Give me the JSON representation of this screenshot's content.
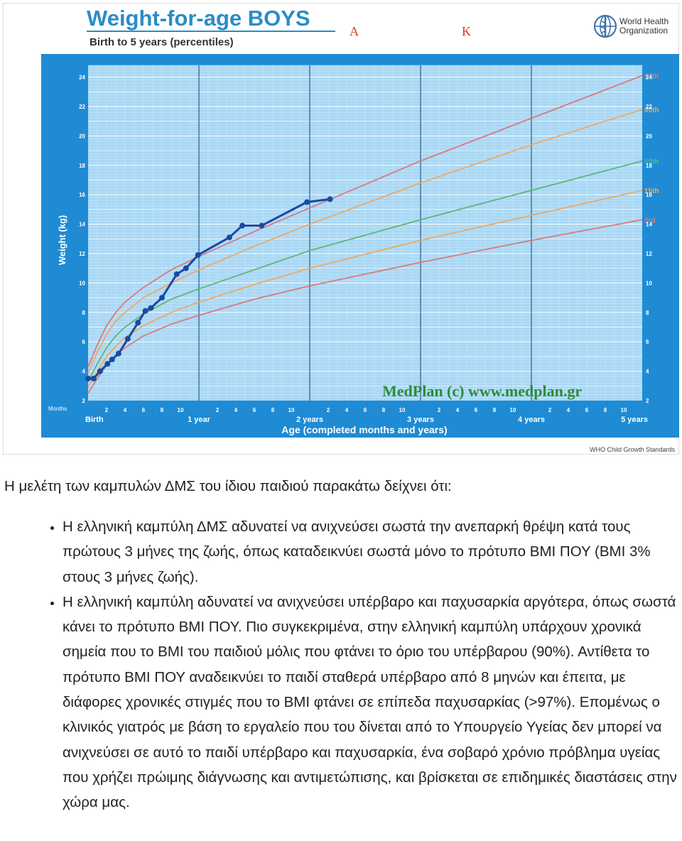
{
  "chart_data": {
    "type": "line",
    "title": "Weight-for-age BOYS",
    "subtitle": "Birth to 5 years (percentiles)",
    "header_marks": [
      "A",
      "K"
    ],
    "organization": "World Health Organization",
    "ylabel": "Weight (kg)",
    "xlabel": "Age (completed months and years)",
    "watermark": "MedPlan (c) www.medplan.gr",
    "footer": "WHO Child Growth Standards",
    "months_label": "Months",
    "ylim": [
      2,
      24.8
    ],
    "xlim": [
      0,
      60
    ],
    "y_ticks": [
      2,
      4,
      6,
      8,
      10,
      12,
      14,
      16,
      18,
      20,
      22,
      24
    ],
    "x_major_labels": [
      {
        "x": 0,
        "label": "Birth"
      },
      {
        "x": 12,
        "label": "1 year"
      },
      {
        "x": 24,
        "label": "2 years"
      },
      {
        "x": 36,
        "label": "3 years"
      },
      {
        "x": 48,
        "label": "4 years"
      },
      {
        "x": 60,
        "label": "5 years"
      }
    ],
    "x_minor_ticks": [
      {
        "x": 2,
        "label": "2"
      },
      {
        "x": 4,
        "label": "4"
      },
      {
        "x": 6,
        "label": "6"
      },
      {
        "x": 8,
        "label": "8"
      },
      {
        "x": 10,
        "label": "10"
      },
      {
        "x": 14,
        "label": "2"
      },
      {
        "x": 16,
        "label": "4"
      },
      {
        "x": 18,
        "label": "6"
      },
      {
        "x": 20,
        "label": "8"
      },
      {
        "x": 22,
        "label": "10"
      },
      {
        "x": 26,
        "label": "2"
      },
      {
        "x": 28,
        "label": "4"
      },
      {
        "x": 30,
        "label": "6"
      },
      {
        "x": 32,
        "label": "8"
      },
      {
        "x": 34,
        "label": "10"
      },
      {
        "x": 38,
        "label": "2"
      },
      {
        "x": 40,
        "label": "4"
      },
      {
        "x": 42,
        "label": "6"
      },
      {
        "x": 44,
        "label": "8"
      },
      {
        "x": 46,
        "label": "10"
      },
      {
        "x": 50,
        "label": "2"
      },
      {
        "x": 52,
        "label": "4"
      },
      {
        "x": 54,
        "label": "6"
      },
      {
        "x": 56,
        "label": "8"
      },
      {
        "x": 58,
        "label": "10"
      }
    ],
    "series": [
      {
        "name": "97th",
        "color": "#d9797c",
        "points": [
          [
            0,
            4.3
          ],
          [
            1,
            5.8
          ],
          [
            2,
            7.1
          ],
          [
            3,
            8.0
          ],
          [
            4,
            8.7
          ],
          [
            6,
            9.7
          ],
          [
            9,
            10.9
          ],
          [
            12,
            11.8
          ],
          [
            18,
            13.5
          ],
          [
            24,
            15.1
          ],
          [
            36,
            18.3
          ],
          [
            48,
            21.2
          ],
          [
            60,
            24.1
          ]
        ]
      },
      {
        "name": "85th",
        "color": "#f0a860",
        "points": [
          [
            0,
            3.9
          ],
          [
            1,
            5.3
          ],
          [
            2,
            6.5
          ],
          [
            3,
            7.4
          ],
          [
            4,
            8.0
          ],
          [
            6,
            9.0
          ],
          [
            9,
            10.0
          ],
          [
            12,
            10.9
          ],
          [
            18,
            12.5
          ],
          [
            24,
            14.0
          ],
          [
            36,
            16.8
          ],
          [
            48,
            19.4
          ],
          [
            60,
            21.8
          ]
        ]
      },
      {
        "name": "50th",
        "color": "#5eb578",
        "points": [
          [
            0,
            3.3
          ],
          [
            1,
            4.5
          ],
          [
            2,
            5.6
          ],
          [
            3,
            6.4
          ],
          [
            4,
            7.0
          ],
          [
            6,
            7.9
          ],
          [
            9,
            8.9
          ],
          [
            12,
            9.6
          ],
          [
            18,
            10.9
          ],
          [
            24,
            12.2
          ],
          [
            36,
            14.3
          ],
          [
            48,
            16.3
          ],
          [
            60,
            18.3
          ]
        ]
      },
      {
        "name": "15th",
        "color": "#f0a860",
        "points": [
          [
            0,
            2.9
          ],
          [
            1,
            4.0
          ],
          [
            2,
            5.0
          ],
          [
            3,
            5.7
          ],
          [
            4,
            6.3
          ],
          [
            6,
            7.1
          ],
          [
            9,
            8.0
          ],
          [
            12,
            8.7
          ],
          [
            18,
            9.9
          ],
          [
            24,
            11.0
          ],
          [
            36,
            12.9
          ],
          [
            48,
            14.6
          ],
          [
            60,
            16.3
          ]
        ]
      },
      {
        "name": "3rd",
        "color": "#d9797c",
        "points": [
          [
            0,
            2.5
          ],
          [
            1,
            3.5
          ],
          [
            2,
            4.4
          ],
          [
            3,
            5.1
          ],
          [
            4,
            5.6
          ],
          [
            6,
            6.4
          ],
          [
            9,
            7.2
          ],
          [
            12,
            7.8
          ],
          [
            18,
            8.9
          ],
          [
            24,
            9.8
          ],
          [
            36,
            11.4
          ],
          [
            48,
            12.9
          ],
          [
            60,
            14.3
          ]
        ]
      }
    ],
    "child": {
      "color": "#1a4aa3",
      "points": [
        [
          0,
          3.5
        ],
        [
          0.6,
          3.5
        ],
        [
          1.3,
          4.0
        ],
        [
          2.1,
          4.5
        ],
        [
          2.6,
          4.8
        ],
        [
          3.3,
          5.2
        ],
        [
          4.3,
          6.2
        ],
        [
          5.4,
          7.3
        ],
        [
          6.2,
          8.1
        ],
        [
          6.8,
          8.3
        ],
        [
          8.0,
          9.0
        ],
        [
          9.6,
          10.6
        ],
        [
          10.6,
          11.0
        ],
        [
          11.9,
          11.9
        ],
        [
          15.3,
          13.1
        ],
        [
          16.7,
          13.9
        ],
        [
          18.8,
          13.9
        ],
        [
          23.7,
          15.5
        ],
        [
          26.2,
          15.7
        ]
      ]
    },
    "grid": true,
    "colors": {
      "frame": "#1e8bd4",
      "plot_bg": "#a9d8f5",
      "grid_major": "#3d6f96",
      "grid_minor": "#cfe7f7",
      "title_blue": "#2b8cc8"
    }
  },
  "text": {
    "intro": "Η μελέτη των καμπυλών ΔΜΣ του ίδιου παιδιού παρακάτω δείχνει ότι:",
    "bullets": [
      "Η ελληνική καμπύλη ΔΜΣ αδυνατεί να ανιχνεύσει σωστά την ανεπαρκή θρέψη κατά τους πρώτους 3 μήνες της ζωής, όπως καταδεικνύει σωστά μόνο το πρότυπο BMI ΠΟΥ (BMI 3% στους 3 μήνες ζωής).",
      "Η ελληνική καμπύλη αδυνατεί να ανιχνεύσει υπέρβαρο και παχυσαρκία αργότερα, όπως σωστά κάνει το πρότυπο BMI ΠΟΥ. Πιο συγκεκριμένα, στην ελληνική καμπύλη υπάρχουν χρονικά σημεία που το BMI του παιδιού μόλις που φτάνει το όριο του υπέρβαρου (90%). Αντίθετα το πρότυπο BMI ΠΟΥ αναδεικνύει το παιδί σταθερά υπέρβαρο από 8 μηνών και έπειτα, με διάφορες χρονικές στιγμές που το BMI φτάνει σε επίπεδα παχυσαρκίας (>97%). Επομένως ο κλινικός γιατρός με βάση το εργαλείο που του δίνεται από το Υπουργείο Υγείας δεν μπορεί να ανιχνεύσει σε αυτό το παιδί υπέρβαρο και παχυσαρκία, ένα σοβαρό χρόνιο πρόβλημα υγείας που χρήζει πρώιμης διάγνωσης και αντιμετώπισης, και βρίσκεται σε επιδημικές διαστάσεις στην χώρα μας."
    ]
  }
}
